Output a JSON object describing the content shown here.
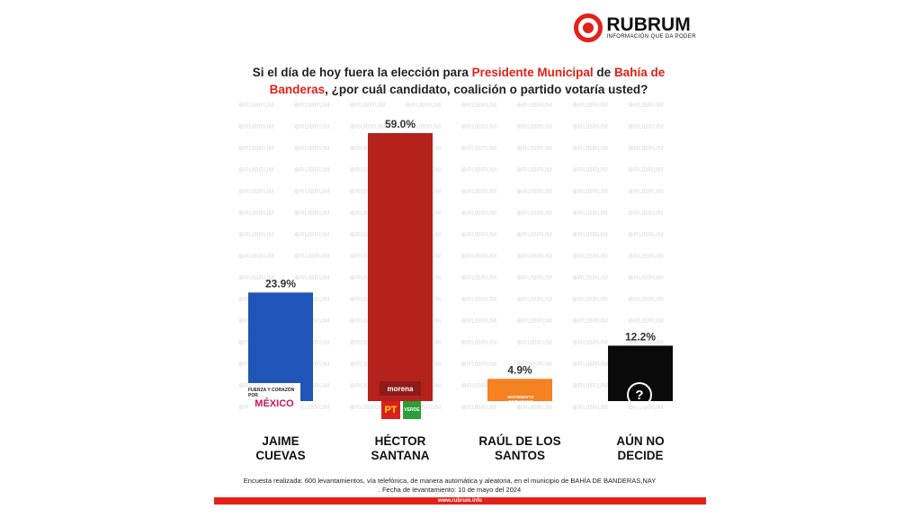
{
  "brand": {
    "name": "RUBRUM",
    "tagline": "INFORMACIÓN QUE DA PODER",
    "watermark": "RUBRUM"
  },
  "question": {
    "part1": "Si el día de hoy fuera la elección para ",
    "highlight1": "Presidente Municipal",
    "part2": " de ",
    "highlight2": "Bahía de Banderas",
    "part3": ", ¿por cuál candidato, coalición o partido votaría usted?"
  },
  "chart_data": {
    "type": "bar",
    "categories": [
      "JAIME CUEVAS",
      "HÉCTOR SANTANA",
      "RAÚL DE LOS SANTOS",
      "AÚN NO DECIDE"
    ],
    "category_lines": [
      [
        "JAIME",
        "CUEVAS"
      ],
      [
        "HÉCTOR",
        "SANTANA"
      ],
      [
        "RAÚL DE LOS",
        "SANTOS"
      ],
      [
        "AÚN NO",
        "DECIDE"
      ]
    ],
    "values": [
      23.9,
      59.0,
      4.9,
      12.2
    ],
    "value_labels": [
      "23.9%",
      "59.0%",
      "4.9%",
      "12.2%"
    ],
    "colors": [
      "#1f55b8",
      "#b5211b",
      "#f58220",
      "#0a0a0a"
    ],
    "party_logos": [
      "FUERZA Y CORAZÓN POR MÉXICO",
      "morena PT VERDE",
      "MOVIMIENTO CIUDADANO",
      "?"
    ],
    "ylim": [
      0,
      60
    ],
    "grid": false,
    "legend": "none"
  },
  "logos": {
    "morena": "morena",
    "pt": "PT",
    "verde": "VERDE",
    "mc": "MOVIMIENTO CIUDADANO",
    "fxm_top": "FUERZA Y CORAZÓN POR",
    "fxm_bottom": "MÉXICO",
    "undecided": "?"
  },
  "footnote": {
    "line1": "Encuesta realizada: 600 levantamientos, vía telefónica, de manera automática y aleatoria, en el municipio de BAHÍA DE BANDERAS,NAY",
    "line2": ". Fecha de levantamiento: 10 de mayo del 2024"
  },
  "footer": {
    "url": "www.rubrum.info"
  }
}
